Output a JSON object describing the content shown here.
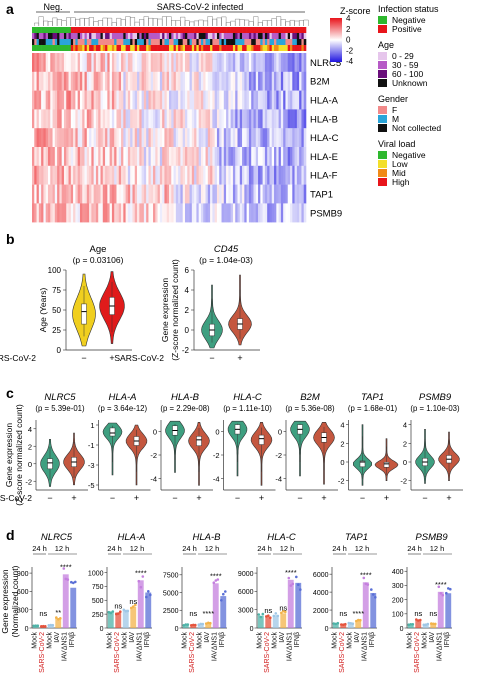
{
  "panel_labels": [
    "a",
    "b",
    "c",
    "d"
  ],
  "panel_a": {
    "group_labels": [
      "Neg.",
      "SARS-CoV-2 infected"
    ],
    "genes": [
      "NLRC5",
      "B2M",
      "HLA-A",
      "HLA-B",
      "HLA-C",
      "HLA-E",
      "HLA-F",
      "TAP1",
      "PSMB9"
    ],
    "zscore_title": "Z-score",
    "zscore_ticks": [
      "4",
      "2",
      "0",
      "-2",
      "-4"
    ],
    "legends": [
      {
        "title": "Infection status",
        "items": [
          {
            "label": "Negative",
            "color": "#2eb82e"
          },
          {
            "label": "Positive",
            "color": "#e8151b"
          }
        ]
      },
      {
        "title": "Age",
        "items": [
          {
            "label": "0 - 29",
            "color": "#e6c6ec"
          },
          {
            "label": "30 - 59",
            "color": "#b65ac6"
          },
          {
            "label": "60 - 100",
            "color": "#6a0f7b"
          },
          {
            "label": "Unknown",
            "color": "#111111"
          }
        ]
      },
      {
        "title": "Gender",
        "items": [
          {
            "label": "F",
            "color": "#f28a8a"
          },
          {
            "label": "M",
            "color": "#2aa4d8"
          },
          {
            "label": "Not collected",
            "color": "#111111"
          }
        ]
      },
      {
        "title": "Viral load",
        "items": [
          {
            "label": "Negative",
            "color": "#2eb82e"
          },
          {
            "label": "Low",
            "color": "#f3df2a"
          },
          {
            "label": "Mid",
            "color": "#f08a16"
          },
          {
            "label": "High",
            "color": "#e8151b"
          }
        ]
      }
    ]
  },
  "panel_b": [
    {
      "title": "Age",
      "pvalue": "(p = 0.03106)",
      "ylabel": "Age (Years)",
      "yticks": [
        "0",
        "25",
        "50",
        "75",
        "100"
      ],
      "ylim": [
        0,
        100
      ],
      "color_neg": "#f0cf1f",
      "color_pos": "#e01b1b"
    },
    {
      "title": "CD45",
      "pvalue": "(p = 1.04e-03)",
      "ylabel": "Gene expression (Z-score normalized count)",
      "yticks": [
        "-2",
        "0",
        "2",
        "4",
        "6"
      ],
      "ylim": [
        -2,
        6
      ],
      "color_neg": "#3e9f80",
      "color_pos": "#c4573f"
    }
  ],
  "sars_label": "SARS-CoV-2",
  "group_ticks": [
    "−",
    "+"
  ],
  "panel_c": {
    "ylabel": "Gene expression (Z-score normalized count)",
    "genes": [
      {
        "name": "NLRC5",
        "pvalue": "(p = 5.39e-01)",
        "yticks": [
          "-2",
          "0",
          "2",
          "4"
        ],
        "ylim": [
          -3,
          5
        ]
      },
      {
        "name": "HLA-A",
        "pvalue": "(p = 3.64e-12)",
        "yticks": [
          "-5",
          "-3",
          "-1",
          "1"
        ],
        "ylim": [
          -5.5,
          1.5
        ]
      },
      {
        "name": "HLA-B",
        "pvalue": "(p = 2.29e-08)",
        "yticks": [
          "-4",
          "-2",
          "0"
        ],
        "ylim": [
          -5,
          1
        ]
      },
      {
        "name": "HLA-C",
        "pvalue": "(p = 1.11e-10)",
        "yticks": [
          "-4",
          "-2",
          "0"
        ],
        "ylim": [
          -5,
          1
        ]
      },
      {
        "name": "B2M",
        "pvalue": "(p = 5.36e-08)",
        "yticks": [
          "-4",
          "-2",
          "0"
        ],
        "ylim": [
          -5,
          1
        ]
      },
      {
        "name": "TAP1",
        "pvalue": "(p = 1.68e-01)",
        "yticks": [
          "-2",
          "0",
          "2",
          "4"
        ],
        "ylim": [
          -3,
          4.5
        ]
      },
      {
        "name": "PSMB9",
        "pvalue": "(p = 1.10e-03)",
        "yticks": [
          "-2",
          "0",
          "2",
          "4"
        ],
        "ylim": [
          -3,
          4.5
        ]
      }
    ]
  },
  "panel_d": {
    "ylabel": "Gene expression (Normalized count)",
    "time_labels": [
      "24 h",
      "12 h"
    ],
    "conditions": [
      "Mock",
      "SARS-CoV-2",
      "Mock",
      "IAV",
      "IAVΔNS1",
      "IFNβ"
    ],
    "condition_colors": [
      "#4fb3a8",
      "#e5533d",
      "#9fc7e6",
      "#f3b34a",
      "#c47fde",
      "#5a6fd6"
    ],
    "genes": [
      {
        "name": "NLRC5",
        "yticks": [
          "0",
          "300",
          "600",
          "900"
        ],
        "ylim": [
          0,
          1000
        ],
        "values": [
          40,
          30,
          50,
          160,
          880,
          660
        ],
        "sig": [
          "ns",
          "**",
          "****"
        ]
      },
      {
        "name": "HLA-A",
        "yticks": [
          "0",
          "250",
          "500",
          "750",
          "1000"
        ],
        "ylim": [
          0,
          1100
        ],
        "values": [
          300,
          280,
          330,
          380,
          860,
          640
        ],
        "sig": [
          "ns",
          "ns",
          "****"
        ]
      },
      {
        "name": "HLA-B",
        "yticks": [
          "0",
          "2500",
          "5000",
          "7500"
        ],
        "ylim": [
          0,
          8600
        ],
        "values": [
          450,
          420,
          520,
          680,
          6300,
          4500
        ],
        "sig": [
          "ns",
          "****",
          "****"
        ]
      },
      {
        "name": "HLA-C",
        "yticks": [
          "0",
          "3000",
          "6000",
          "9000"
        ],
        "ylim": [
          0,
          10000
        ],
        "values": [
          2000,
          1800,
          2100,
          2400,
          7900,
          7400
        ],
        "sig": [
          "ns",
          "ns",
          "****"
        ]
      },
      {
        "name": "TAP1",
        "yticks": [
          "0",
          "2000",
          "4000",
          "6000"
        ],
        "ylim": [
          0,
          6800
        ],
        "values": [
          500,
          420,
          560,
          800,
          5100,
          3900
        ],
        "sig": [
          "ns",
          "****",
          "****"
        ]
      },
      {
        "name": "PSMB9",
        "yticks": [
          "0",
          "100",
          "200",
          "300",
          "400"
        ],
        "ylim": [
          0,
          430
        ],
        "values": [
          25,
          55,
          25,
          30,
          255,
          245
        ],
        "sig": [
          "ns",
          "ns",
          "****"
        ]
      }
    ]
  },
  "chart_data": [
    {
      "type": "heatmap",
      "rows": [
        "NLRC5",
        "B2M",
        "HLA-A",
        "HLA-B",
        "HLA-C",
        "HLA-E",
        "HLA-F",
        "TAP1",
        "PSMB9"
      ],
      "columns": [
        "Neg.",
        "SARS-CoV-2 infected"
      ],
      "color_range": [
        -4,
        4
      ]
    },
    {
      "type": "violin",
      "title": "Age",
      "subtitle": "(p = 0.03106)",
      "categories": [
        "−",
        "+"
      ],
      "xlabel": "SARS-CoV-2",
      "ylabel": "Age (Years)",
      "ylim": [
        0,
        100
      ],
      "medians": [
        48,
        55
      ]
    },
    {
      "type": "violin",
      "title": "CD45",
      "subtitle": "(p = 1.04e-03)",
      "categories": [
        "−",
        "+"
      ],
      "xlabel": "SARS-CoV-2",
      "ylabel": "Gene expression (Z-score normalized count)",
      "ylim": [
        -2,
        6
      ],
      "medians": [
        0,
        0.6
      ]
    },
    {
      "type": "violin",
      "categories": [
        "−",
        "+"
      ],
      "xlabel": "SARS-CoV-2",
      "series": [
        {
          "name": "NLRC5",
          "medians": [
            0.1,
            0.2
          ]
        },
        {
          "name": "HLA-A",
          "medians": [
            0.2,
            -0.6
          ]
        },
        {
          "name": "HLA-B",
          "medians": [
            0.1,
            -0.7
          ]
        },
        {
          "name": "HLA-C",
          "medians": [
            0.2,
            -0.6
          ]
        },
        {
          "name": "B2M",
          "medians": [
            0.2,
            -0.5
          ]
        },
        {
          "name": "TAP1",
          "medians": [
            0.0,
            -0.2
          ]
        },
        {
          "name": "PSMB9",
          "medians": [
            0.0,
            0.3
          ]
        }
      ]
    },
    {
      "type": "bar",
      "categories": [
        "Mock",
        "SARS-CoV-2",
        "Mock",
        "IAV",
        "IAVΔNS1",
        "IFNβ"
      ],
      "series": [
        {
          "name": "NLRC5",
          "values": [
            40,
            30,
            50,
            160,
            880,
            660
          ]
        },
        {
          "name": "HLA-A",
          "values": [
            300,
            280,
            330,
            380,
            860,
            640
          ]
        },
        {
          "name": "HLA-B",
          "values": [
            450,
            420,
            520,
            680,
            6300,
            4500
          ]
        },
        {
          "name": "HLA-C",
          "values": [
            2000,
            1800,
            2100,
            2400,
            7900,
            7400
          ]
        },
        {
          "name": "TAP1",
          "values": [
            500,
            420,
            560,
            800,
            5100,
            3900
          ]
        },
        {
          "name": "PSMB9",
          "values": [
            25,
            55,
            25,
            30,
            255,
            245
          ]
        }
      ]
    }
  ]
}
